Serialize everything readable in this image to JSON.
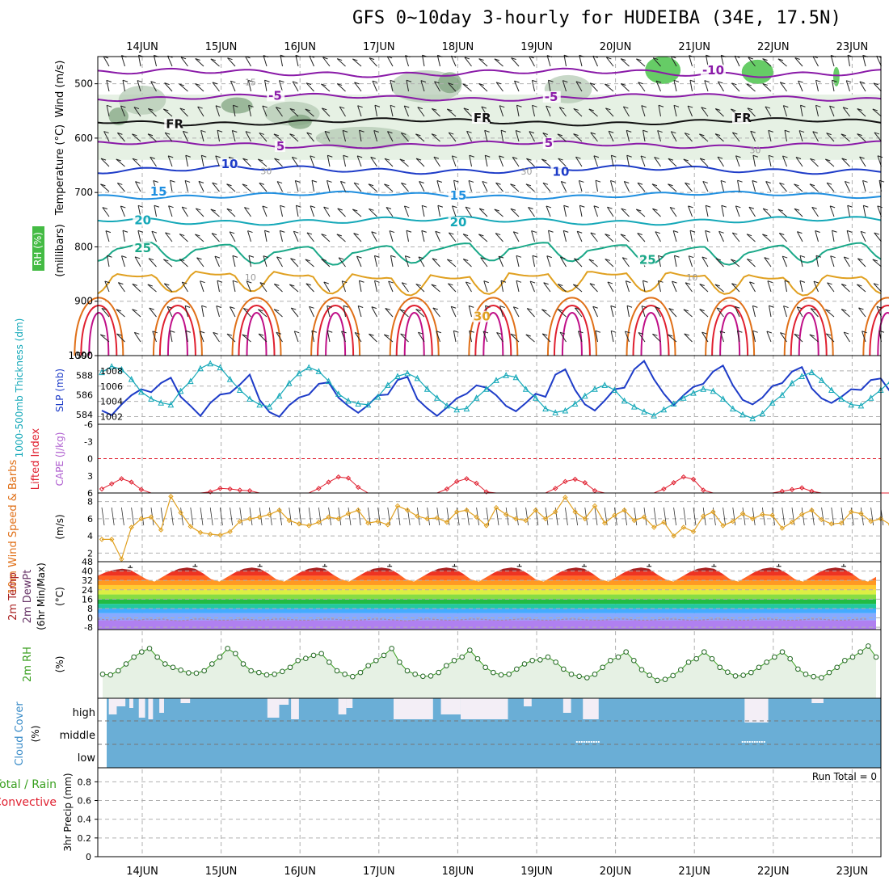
{
  "title": "GFS 0~10day 3-hourly for HUDEIBA (34E, 17.5N)",
  "colors": {
    "purple": "#8a1aa8",
    "black": "#111111",
    "blue": "#1e3cc8",
    "lightblue": "#1f8fe0",
    "cyan": "#14a8b8",
    "teal": "#1aa888",
    "gold": "#e0a020",
    "orange": "#e07018",
    "red": "#e02030",
    "magenta": "#c01088",
    "green": "#3aa020",
    "cloud": "#6aaed6",
    "rh_fill_light": "#e6f1e4",
    "rh_fill_mid": "#b0c8b0",
    "rh_fill_dark": "#7aa07a",
    "rh_green": "#66cc66"
  },
  "chart_data": [
    {
      "panel": "upper-air",
      "type": "contour",
      "x_dates": [
        "14JUN",
        "15JUN",
        "16JUN",
        "17JUN",
        "18JUN",
        "19JUN",
        "20JUN",
        "21JUN",
        "22JUN",
        "23JUN"
      ],
      "y_ticks": [
        500,
        600,
        700,
        800,
        900,
        1000
      ],
      "ylim": [
        450,
        1000
      ],
      "axis_labels": [
        "Wind (m/s)",
        "Temperature (°C)",
        "RH (%)",
        "(millibars)"
      ],
      "contour_labels": [
        {
          "text": "-10",
          "p": 478,
          "day": 7.1,
          "color": "purple"
        },
        {
          "text": "-5",
          "p": 525,
          "day": 1.6,
          "color": "purple"
        },
        {
          "text": "-5",
          "p": 527,
          "day": 5.1,
          "color": "purple"
        },
        {
          "text": "FR",
          "p": 577,
          "day": 0.3,
          "color": "black"
        },
        {
          "text": "FR",
          "p": 566,
          "day": 4.2,
          "color": "black"
        },
        {
          "text": "FR",
          "p": 566,
          "day": 7.5,
          "color": "black"
        },
        {
          "text": "5",
          "p": 618,
          "day": 1.7,
          "color": "purple"
        },
        {
          "text": "5",
          "p": 612,
          "day": 5.1,
          "color": "purple"
        },
        {
          "text": "10",
          "p": 651,
          "day": 1.0,
          "color": "blue"
        },
        {
          "text": "10",
          "p": 665,
          "day": 5.2,
          "color": "blue"
        },
        {
          "text": "15",
          "p": 701,
          "day": 0.1,
          "color": "lightblue"
        },
        {
          "text": "15",
          "p": 709,
          "day": 3.9,
          "color": "lightblue"
        },
        {
          "text": "20",
          "p": 754,
          "day": -0.1,
          "color": "cyan"
        },
        {
          "text": "20",
          "p": 758,
          "day": 3.9,
          "color": "cyan"
        },
        {
          "text": "25",
          "p": 805,
          "day": -0.1,
          "color": "teal"
        },
        {
          "text": "25",
          "p": 827,
          "day": 6.3,
          "color": "teal"
        },
        {
          "text": "30",
          "p": 931,
          "day": 4.2,
          "color": "gold"
        }
      ],
      "rh_labels": [
        {
          "text": "30",
          "p": 628,
          "day": 7.7
        },
        {
          "text": "30",
          "p": 667,
          "day": 4.8
        },
        {
          "text": "30",
          "p": 666,
          "day": 1.5
        },
        {
          "text": "10",
          "p": 862,
          "day": 1.3
        },
        {
          "text": "10",
          "p": 862,
          "day": 6.9
        },
        {
          "text": "15",
          "p": 503,
          "day": 1.3
        }
      ]
    },
    {
      "panel": "thickness-slp",
      "type": "line",
      "ylabel_left": "1000-500mb Thickness (dm)",
      "ylabel_right": "SLP (mb)",
      "left_ticks": [
        584,
        586,
        588,
        590
      ],
      "left_range": [
        583,
        590
      ],
      "right_ticks": [
        1002,
        1004,
        1006,
        1008
      ],
      "right_range": [
        1001,
        1010
      ],
      "series": [
        {
          "name": "SLP (mb)",
          "values": [
            1002.8,
            1002.2,
            1003.6,
            1004.8,
            1005.6,
            1005.2,
            1006.4,
            1007.1,
            1004.6,
            1003.4,
            1002.1,
            1003.8,
            1004.9,
            1005.1,
            1006.2,
            1007.5,
            1004.2,
            1002.6,
            1002.0,
            1003.5,
            1004.5,
            1004.9,
            1006.3,
            1006.5,
            1004.5,
            1003.4,
            1002.5,
            1003.5,
            1004.8,
            1004.9,
            1006.8,
            1007.2,
            1004.3,
            1003.1,
            1002.1,
            1003.2,
            1004.4,
            1005.0,
            1006.1,
            1005.8,
            1004.8,
            1003.4,
            1002.7,
            1003.8,
            1005.0,
            1004.6,
            1007.5,
            1008.2,
            1005.5,
            1003.6,
            1002.8,
            1004.1,
            1005.6,
            1005.8,
            1008.2,
            1009.3,
            1006.9,
            1005.0,
            1003.5,
            1004.8,
            1005.9,
            1006.3,
            1007.9,
            1008.7,
            1006.1,
            1004.2,
            1003.6,
            1004.5,
            1006.0,
            1006.4,
            1007.9,
            1008.5,
            1005.7,
            1004.4,
            1003.8,
            1004.6,
            1005.6,
            1005.5,
            1006.8,
            1007.0,
            1005.2,
            1003.9,
            1003.4,
            1004.1,
            1005.6,
            1005.5,
            1006.6,
            1006.5,
            1004.2,
            1003.1,
            1002.2,
            1003.7,
            1004.6,
            1005.0,
            1006.6,
            1004.3,
            1003.3,
            1004.0,
            1005.4,
            1007.7
          ]
        },
        {
          "name": "1000-500mb Thickness (dm)",
          "values": [
            588.3,
            588.9,
            588.6,
            587.6,
            586.3,
            585.6,
            585.2,
            585.0,
            586.4,
            587.4,
            588.7,
            589.2,
            588.8,
            587.6,
            586.5,
            585.6,
            585.0,
            584.8,
            585.9,
            587.2,
            588.2,
            588.8,
            588.4,
            587.4,
            586.1,
            585.4,
            585.1,
            585.0,
            585.8,
            587.0,
            587.9,
            588.2,
            587.7,
            586.6,
            585.7,
            584.9,
            584.5,
            584.6,
            585.7,
            586.6,
            587.5,
            588.0,
            587.8,
            586.6,
            585.7,
            584.6,
            584.2,
            584.4,
            585.1,
            585.9,
            586.6,
            587.0,
            586.5,
            585.4,
            584.8,
            584.3,
            583.9,
            584.5,
            585.1,
            585.7,
            586.2,
            586.6,
            586.4,
            585.6,
            584.6,
            584.0,
            583.6,
            584.1,
            585.2,
            586.0,
            587.2,
            587.9,
            588.3,
            587.5,
            586.5,
            585.6,
            585.0,
            584.9,
            585.7,
            586.5,
            587.4,
            588.0,
            587.6,
            586.7,
            585.6,
            585.1,
            584.5,
            584.7,
            585.7,
            586.7,
            587.3,
            587.6,
            587.3,
            586.5,
            585.5,
            584.9,
            584.5,
            584.2,
            583.8,
            583.9
          ]
        }
      ]
    },
    {
      "panel": "lifted-index-cape",
      "type": "line",
      "ylabel_left": "Lifted Index",
      "ylabel_right": "CAPE (J/kg)",
      "ticks": [
        -6,
        -3,
        0,
        3,
        6
      ],
      "ylim": [
        -6,
        6
      ],
      "series": [
        {
          "name": "Lifted Index",
          "values": [
            5.3,
            4.4,
            3.5,
            4.1,
            5.4,
            6,
            6,
            6,
            6,
            6,
            6,
            5.8,
            5.2,
            5.3,
            5.5,
            5.6,
            6,
            6,
            6,
            6,
            6,
            6,
            5.2,
            4.1,
            3.2,
            3.4,
            5.0,
            6,
            6,
            6,
            6,
            6,
            6,
            6,
            6,
            5.3,
            4.0,
            3.5,
            4.3,
            5.8,
            6,
            6,
            6,
            6,
            6,
            6,
            5.2,
            4.0,
            3.6,
            4.2,
            5.6,
            6,
            6,
            6,
            6,
            6,
            6,
            5.3,
            4.2,
            3.2,
            3.6,
            5.5,
            6,
            6,
            6,
            6,
            6,
            6,
            6,
            5.7,
            5.4,
            5.1,
            5.7,
            6,
            6,
            6,
            6,
            6,
            6,
            6,
            6,
            5.4,
            4.0,
            3.4,
            4.1,
            5.7,
            6,
            6,
            6,
            6,
            6,
            6,
            6,
            5.2,
            4.1,
            3.7,
            4.6,
            6,
            6,
            6
          ]
        }
      ]
    },
    {
      "panel": "10m-wind",
      "type": "line",
      "ylabel_left": "10m Wind Speed & Barbs",
      "ylabel_right": "(m/s)",
      "ticks": [
        2,
        4,
        6,
        8
      ],
      "ylim": [
        1,
        9
      ],
      "series": [
        {
          "name": "10m Wind Speed",
          "values": [
            3.6,
            3.6,
            1.3,
            5.0,
            6.0,
            6.2,
            4.7,
            8.6,
            6.7,
            5.1,
            4.4,
            4.2,
            4.1,
            4.5,
            5.7,
            6.0,
            6.2,
            6.5,
            7.0,
            5.8,
            5.4,
            5.2,
            5.6,
            6.2,
            6.0,
            6.6,
            7.0,
            5.5,
            5.7,
            5.3,
            7.5,
            7.0,
            6.3,
            6.0,
            6.1,
            5.6,
            6.8,
            7.0,
            6.2,
            5.2,
            7.3,
            6.5,
            6.0,
            5.8,
            7.0,
            6.0,
            6.8,
            8.5,
            6.8,
            6.0,
            7.5,
            5.5,
            6.4,
            7.0,
            5.8,
            6.2,
            5.0,
            5.6,
            4.0,
            5.0,
            4.5,
            6.3,
            6.8,
            5.2,
            5.7,
            6.6,
            6.0,
            6.5,
            6.4,
            4.9,
            5.6,
            6.5,
            7.0,
            5.9,
            5.4,
            5.5,
            6.8,
            6.6,
            5.7,
            6.0,
            5.3,
            4.3,
            5.5,
            6.8,
            7.2,
            6.0,
            5.3,
            5.5,
            4.9,
            4.4,
            4.1,
            6.8,
            7.2,
            4.0,
            3.1,
            5.4,
            5.9,
            4.9,
            6.0,
            6.3
          ]
        }
      ]
    },
    {
      "panel": "2m-temp",
      "type": "area",
      "ylabel_left": "2m Temp 2m DewPt (6hr Min/Max)",
      "ylabel_right": "(°C)",
      "ticks": [
        -8,
        0,
        8,
        16,
        24,
        32,
        40,
        48
      ],
      "ylim": [
        -10,
        48
      ],
      "series": [
        {
          "name": "2m Temp",
          "values": [
            36,
            39,
            41,
            42,
            41,
            37,
            33,
            31,
            35,
            39,
            42,
            43,
            42,
            38,
            33,
            31,
            35,
            39,
            42,
            43,
            42,
            38,
            33,
            31,
            35,
            39,
            42,
            43,
            42,
            37,
            33,
            31,
            35,
            39,
            42,
            43,
            42,
            38,
            33,
            31,
            35,
            39,
            42,
            43,
            42,
            38,
            33,
            31,
            35,
            39,
            42,
            43,
            42,
            38,
            33,
            31,
            35,
            39,
            42,
            43,
            42,
            38,
            33,
            31,
            35,
            39,
            42,
            43,
            42,
            37,
            33,
            31,
            35,
            39,
            42,
            43,
            42,
            38,
            33,
            31,
            35,
            39,
            42,
            43,
            42,
            38,
            33,
            31,
            35,
            39,
            42,
            43,
            42,
            38,
            33,
            31,
            35
          ]
        },
        {
          "name": "2m DewPt",
          "values": [
            -1,
            -1.5,
            -2,
            -1,
            -1,
            -2,
            -1,
            -1.5,
            -1,
            -2,
            -2.5,
            -2,
            -1,
            -1,
            -1.5,
            -2,
            -2,
            -1.5,
            -1,
            -1.5,
            -2,
            -1.5,
            -1,
            -1,
            -1.5,
            -2,
            -2,
            -1.5,
            -1,
            -1,
            -1.5,
            -2,
            -2,
            -1.5,
            -1,
            -1,
            -1.5,
            -2,
            -2.5,
            -2,
            -1,
            -1,
            -1.5,
            -2,
            -2,
            -1.5,
            -1,
            -1,
            -1.5,
            -2,
            -2,
            -1.5,
            -1,
            -1,
            -1.5,
            -2,
            -2,
            -1.5,
            -1,
            -1,
            -1.5,
            -2,
            -2,
            -1.5,
            -1,
            -1,
            -1.5,
            -2,
            -2,
            -1.5,
            -1,
            -1,
            -1.5,
            -2,
            -2,
            -1.5,
            -1,
            -1,
            -1.5,
            -2,
            -2,
            -1.5,
            -1,
            -1,
            -1.5,
            -2,
            -2,
            -1.5,
            -1,
            -1,
            -1.5,
            -2,
            -2,
            -1.5,
            -1,
            -1
          ]
        }
      ]
    },
    {
      "panel": "2m-rh",
      "type": "line",
      "ylabel_left": "2m RH",
      "ylabel_right": "(%)",
      "ylim": [
        0,
        20
      ],
      "series": [
        {
          "name": "2m RH",
          "values": [
            7,
            6.8,
            8,
            10,
            12,
            13.5,
            14.5,
            12,
            10,
            9,
            8.2,
            7.4,
            7.3,
            8,
            10,
            12,
            14.5,
            13,
            10,
            8,
            7.5,
            6.8,
            7,
            7.8,
            9,
            11,
            11.6,
            12.5,
            13,
            10.5,
            8,
            7,
            6.3,
            7.5,
            9.5,
            11,
            12.5,
            14.5,
            10.5,
            8,
            7,
            6.4,
            6.5,
            7.5,
            9.5,
            11,
            12,
            14,
            11.5,
            9,
            7.5,
            6.8,
            7,
            8.5,
            10,
            11,
            11.2,
            12,
            10.5,
            8.5,
            7,
            6.4,
            6,
            7,
            9,
            11,
            12,
            13.5,
            11,
            8.3,
            6.7,
            5.2,
            5.5,
            6.6,
            8.3,
            10.5,
            11.5,
            13.5,
            11.5,
            9,
            7.6,
            6.5,
            6.7,
            7.5,
            9,
            10.5,
            12,
            13.5,
            11.5,
            8.5,
            7,
            6.3,
            6,
            7.5,
            9,
            11,
            12,
            13.5,
            15.2,
            12
          ]
        }
      ]
    },
    {
      "panel": "cloud-cover",
      "type": "area",
      "ylabel_left": "Cloud Cover",
      "ylabel_right": "(%)",
      "tick_labels": [
        "high",
        "middle",
        "low"
      ]
    },
    {
      "panel": "precip",
      "type": "bar",
      "ylabel_left": "Total / Rain Convective",
      "ylabel_right": "3hr Precip (mm)",
      "ticks": [
        0,
        0.2,
        0.4,
        0.6,
        0.8
      ],
      "tick_labels": [
        "0",
        "0.2",
        "0.4",
        "0.6",
        "0.8"
      ],
      "ylim": [
        0,
        0.95
      ],
      "run_total": "Run Total = 0",
      "values": []
    }
  ]
}
